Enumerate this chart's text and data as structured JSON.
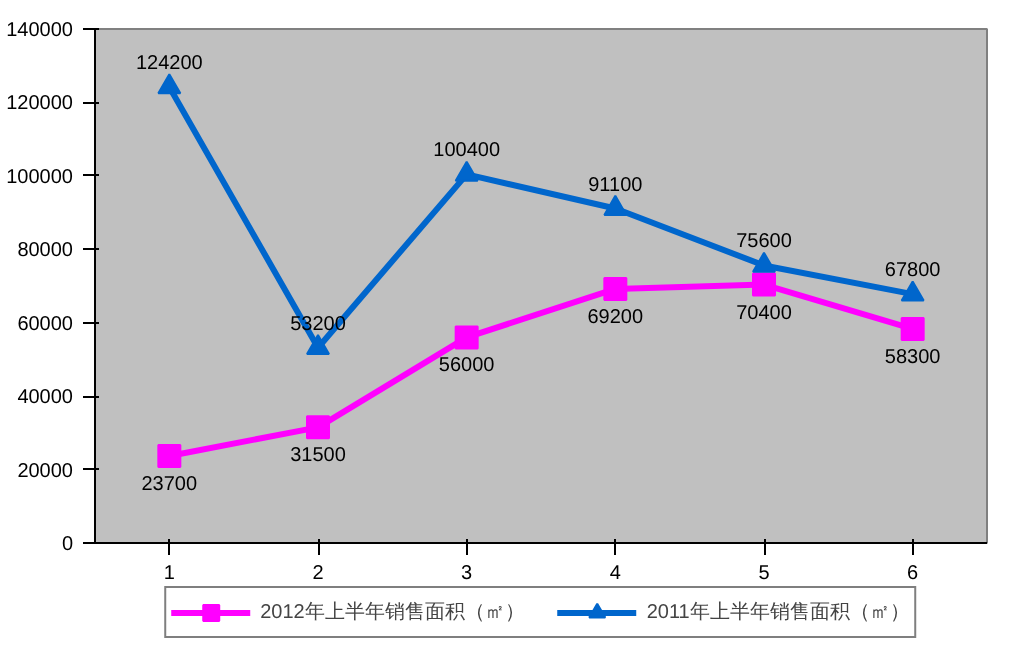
{
  "chart_data": {
    "type": "line",
    "categories": [
      "1",
      "2",
      "3",
      "4",
      "5",
      "6"
    ],
    "series": [
      {
        "name": "2012年上半年销售面积（㎡）",
        "color": "#ff00ff",
        "marker": "square",
        "values": [
          23700,
          31500,
          56000,
          69200,
          70400,
          58300
        ]
      },
      {
        "name": "2011年上半年销售面积（㎡）",
        "color": "#0066cc",
        "marker": "triangle",
        "values": [
          124200,
          53200,
          100400,
          91100,
          75600,
          67800
        ]
      }
    ],
    "ylim": [
      0,
      140000
    ],
    "yticks": [
      0,
      20000,
      40000,
      60000,
      80000,
      100000,
      120000,
      140000
    ],
    "grid": false,
    "legend": "bottom",
    "data_labels": true,
    "line_style": "solid"
  }
}
